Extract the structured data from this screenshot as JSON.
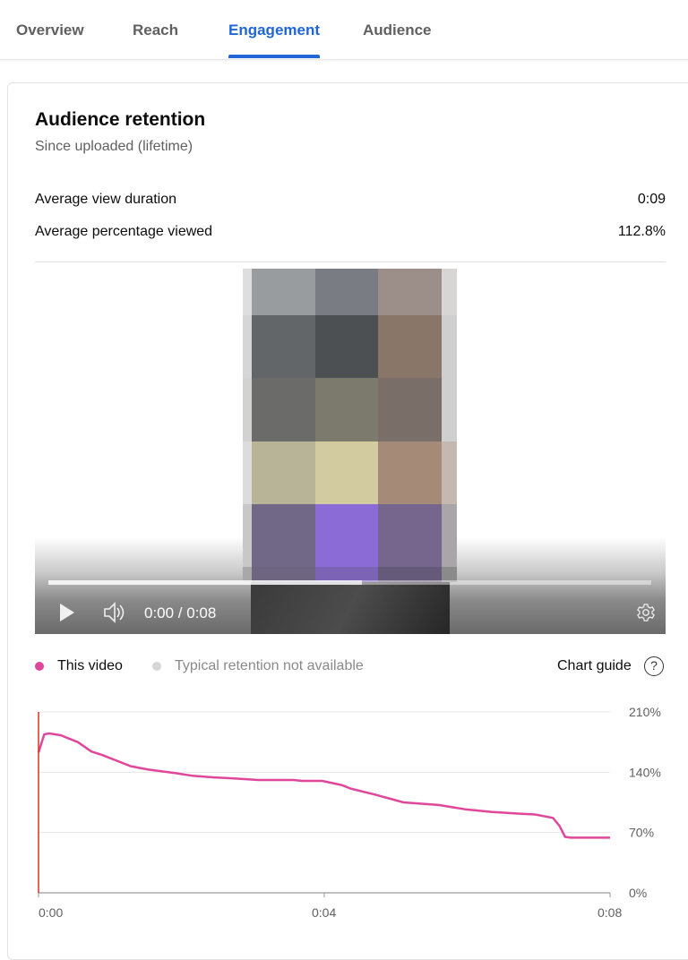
{
  "tabs": [
    {
      "label": "Overview"
    },
    {
      "label": "Reach"
    },
    {
      "label": "Engagement",
      "active": true
    },
    {
      "label": "Audience"
    }
  ],
  "card": {
    "title": "Audience retention",
    "subtitle": "Since uploaded (lifetime)",
    "metrics": [
      {
        "label": "Average view duration",
        "value": "0:09"
      },
      {
        "label": "Average percentage viewed",
        "value": "112.8%"
      }
    ]
  },
  "player": {
    "time": "0:00 / 0:08",
    "buffered_fraction": 0.52,
    "icons": [
      "play-icon",
      "volume-icon",
      "settings-gear-icon"
    ]
  },
  "legend": {
    "this_video": "This video",
    "typical": "Typical retention not available",
    "chart_guide": "Chart guide",
    "help": "?"
  },
  "colors": {
    "accent": "#2166d8",
    "series": "#e0479a",
    "playhead": "#d93025",
    "typical": "#d6d6d6"
  },
  "chart_data": {
    "type": "line",
    "x_ticks": [
      "0:00",
      "0:04",
      "0:08"
    ],
    "xlim": [
      0,
      8
    ],
    "y_ticks": [
      "0%",
      "70%",
      "140%",
      "210%"
    ],
    "ylim": [
      0,
      210
    ],
    "grid": true,
    "y_axis_position": "right",
    "series": [
      {
        "name": "This video",
        "x": [
          0,
          0.08,
          0.15,
          0.31,
          0.55,
          0.74,
          0.89,
          1.29,
          1.54,
          1.91,
          2.15,
          2.46,
          2.71,
          3.08,
          3.57,
          3.69,
          3.97,
          4.25,
          4.37,
          4.71,
          5.11,
          5.6,
          5.97,
          6.34,
          6.71,
          6.95,
          7.2,
          7.29,
          7.37,
          7.45,
          8.0
        ],
        "y": [
          163,
          184,
          185,
          183,
          175,
          164,
          160,
          147,
          143,
          139,
          136,
          134,
          133,
          131,
          131,
          130,
          130,
          125,
          121,
          114,
          105,
          102,
          97,
          94,
          92,
          91,
          87,
          78,
          65,
          64,
          64
        ]
      }
    ],
    "playhead_x": 0
  }
}
